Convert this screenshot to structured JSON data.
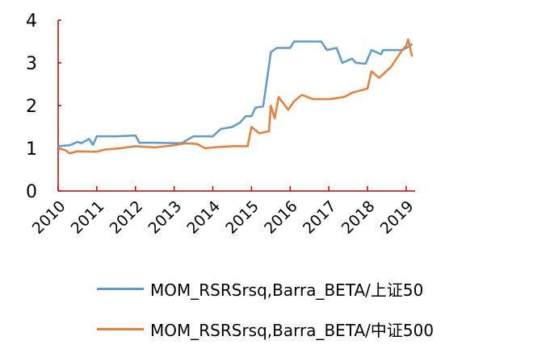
{
  "chart_data": {
    "type": "line",
    "title": "",
    "xlabel": "",
    "ylabel": "",
    "xlim": [
      2010,
      2019.2
    ],
    "ylim": [
      0,
      4
    ],
    "x_ticks": [
      "2010",
      "2011",
      "2012",
      "2013",
      "2014",
      "2015",
      "2016",
      "2017",
      "2018",
      "2019"
    ],
    "y_ticks": [
      "0",
      "1",
      "2",
      "3",
      "4"
    ],
    "grid": false,
    "legend_placement": "bottom",
    "colors": {
      "axis": "#c00000"
    },
    "series": [
      {
        "name": "MOM_RSRSrsq,Barra_BETA/上证50",
        "color": "#5b9bd5",
        "x": [
          2010.0,
          2010.3,
          2010.5,
          2010.6,
          2010.8,
          2010.9,
          2011.0,
          2011.5,
          2012.0,
          2012.1,
          2012.5,
          2013.0,
          2013.2,
          2013.3,
          2013.5,
          2014.0,
          2014.2,
          2014.5,
          2014.7,
          2014.85,
          2015.0,
          2015.1,
          2015.3,
          2015.4,
          2015.5,
          2015.65,
          2016.0,
          2016.1,
          2016.5,
          2016.8,
          2016.95,
          2017.2,
          2017.35,
          2017.6,
          2017.7,
          2017.95,
          2018.1,
          2018.35,
          2018.4,
          2018.9,
          2019.1,
          2019.15
        ],
        "y": [
          1.05,
          1.07,
          1.15,
          1.12,
          1.22,
          1.08,
          1.28,
          1.28,
          1.3,
          1.13,
          1.13,
          1.12,
          1.12,
          1.18,
          1.28,
          1.28,
          1.45,
          1.5,
          1.6,
          1.75,
          1.75,
          1.95,
          1.98,
          2.6,
          3.25,
          3.35,
          3.35,
          3.5,
          3.5,
          3.5,
          3.3,
          3.35,
          3.0,
          3.1,
          3.0,
          2.98,
          3.3,
          3.2,
          3.3,
          3.3,
          3.4,
          3.45
        ]
      },
      {
        "name": "MOM_RSRSrsq,Barra_BETA/中证500",
        "color": "#ed7d31",
        "x": [
          2010.0,
          2010.2,
          2010.3,
          2010.5,
          2011.0,
          2011.2,
          2011.6,
          2012.0,
          2012.5,
          2013.0,
          2013.3,
          2013.6,
          2013.8,
          2014.0,
          2014.5,
          2014.9,
          2015.0,
          2015.2,
          2015.45,
          2015.5,
          2015.6,
          2015.7,
          2015.95,
          2016.1,
          2016.3,
          2016.6,
          2017.0,
          2017.4,
          2017.6,
          2018.0,
          2018.1,
          2018.3,
          2018.6,
          2018.9,
          2019.0,
          2019.05,
          2019.15
        ],
        "y": [
          1.0,
          0.95,
          0.88,
          0.93,
          0.92,
          0.97,
          1.0,
          1.05,
          1.02,
          1.07,
          1.12,
          1.1,
          1.0,
          1.02,
          1.05,
          1.05,
          1.5,
          1.35,
          1.4,
          2.0,
          1.7,
          2.2,
          1.9,
          2.1,
          2.25,
          2.15,
          2.15,
          2.2,
          2.3,
          2.4,
          2.8,
          2.65,
          2.9,
          3.3,
          3.4,
          3.55,
          3.15
        ]
      }
    ]
  }
}
